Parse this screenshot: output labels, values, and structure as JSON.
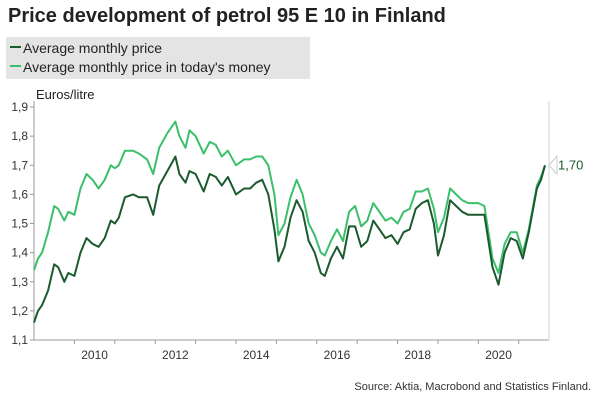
{
  "title": "Price development of petrol 95 E 10 in Finland",
  "source": "Source: Aktia, Macrobond and Statistics Finland.",
  "colors": {
    "series1": "#1a5a2e",
    "series2": "#3bbf6a",
    "axis": "#999999",
    "grid": "#e6e6e6"
  },
  "chart_data": {
    "type": "line",
    "title": "Price development of petrol 95 E 10 in Finland",
    "ylabel": "Euros/litre",
    "xlabel": "",
    "ylim": [
      1.1,
      1.9
    ],
    "xlim": [
      2009.0,
      2021.65
    ],
    "yticks": [
      "1,1",
      "1,2",
      "1,3",
      "1,4",
      "1,5",
      "1,6",
      "1,7",
      "1,8",
      "1,9"
    ],
    "xticks": [
      "2010",
      "2012",
      "2014",
      "2016",
      "2018",
      "2020"
    ],
    "legend_position": "top-left",
    "grid": false,
    "end_label": "1,70",
    "series": [
      {
        "name": "Average monthly price",
        "x": [
          2009.0,
          2009.1,
          2009.2,
          2009.35,
          2009.5,
          2009.6,
          2009.75,
          2009.85,
          2010.0,
          2010.15,
          2010.3,
          2010.45,
          2010.6,
          2010.75,
          2010.9,
          2011.0,
          2011.1,
          2011.25,
          2011.45,
          2011.6,
          2011.8,
          2011.95,
          2012.1,
          2012.3,
          2012.5,
          2012.6,
          2012.75,
          2012.85,
          2013.0,
          2013.2,
          2013.35,
          2013.5,
          2013.65,
          2013.8,
          2014.0,
          2014.2,
          2014.35,
          2014.5,
          2014.65,
          2014.8,
          2014.95,
          2015.05,
          2015.2,
          2015.35,
          2015.5,
          2015.65,
          2015.8,
          2015.95,
          2016.1,
          2016.2,
          2016.35,
          2016.5,
          2016.65,
          2016.8,
          2016.95,
          2017.1,
          2017.25,
          2017.4,
          2017.55,
          2017.7,
          2017.85,
          2018.0,
          2018.15,
          2018.3,
          2018.45,
          2018.6,
          2018.75,
          2018.9,
          2019.0,
          2019.15,
          2019.3,
          2019.45,
          2019.6,
          2019.75,
          2019.9,
          2020.0,
          2020.15,
          2020.35,
          2020.5,
          2020.65,
          2020.8,
          2020.95,
          2021.1,
          2021.25,
          2021.45,
          2021.55,
          2021.65
        ],
        "values": [
          1.16,
          1.2,
          1.22,
          1.27,
          1.36,
          1.35,
          1.3,
          1.33,
          1.32,
          1.4,
          1.45,
          1.43,
          1.42,
          1.45,
          1.51,
          1.5,
          1.52,
          1.59,
          1.6,
          1.59,
          1.59,
          1.53,
          1.63,
          1.68,
          1.73,
          1.67,
          1.64,
          1.68,
          1.67,
          1.61,
          1.67,
          1.66,
          1.63,
          1.66,
          1.6,
          1.62,
          1.62,
          1.64,
          1.65,
          1.6,
          1.48,
          1.37,
          1.42,
          1.52,
          1.58,
          1.54,
          1.44,
          1.4,
          1.33,
          1.32,
          1.38,
          1.42,
          1.38,
          1.49,
          1.49,
          1.42,
          1.44,
          1.51,
          1.48,
          1.45,
          1.46,
          1.43,
          1.47,
          1.48,
          1.55,
          1.57,
          1.58,
          1.5,
          1.39,
          1.46,
          1.58,
          1.56,
          1.54,
          1.53,
          1.53,
          1.53,
          1.53,
          1.35,
          1.29,
          1.4,
          1.45,
          1.44,
          1.38,
          1.47,
          1.62,
          1.65,
          1.7
        ]
      },
      {
        "name": "Average monthly price in today's money",
        "x": [
          2009.0,
          2009.1,
          2009.2,
          2009.35,
          2009.5,
          2009.6,
          2009.75,
          2009.85,
          2010.0,
          2010.15,
          2010.3,
          2010.45,
          2010.6,
          2010.75,
          2010.9,
          2011.0,
          2011.1,
          2011.25,
          2011.45,
          2011.6,
          2011.8,
          2011.95,
          2012.1,
          2012.3,
          2012.5,
          2012.6,
          2012.75,
          2012.85,
          2013.0,
          2013.2,
          2013.35,
          2013.5,
          2013.65,
          2013.8,
          2014.0,
          2014.2,
          2014.35,
          2014.5,
          2014.65,
          2014.8,
          2014.95,
          2015.05,
          2015.2,
          2015.35,
          2015.5,
          2015.65,
          2015.8,
          2015.95,
          2016.1,
          2016.2,
          2016.35,
          2016.5,
          2016.65,
          2016.8,
          2016.95,
          2017.1,
          2017.25,
          2017.4,
          2017.55,
          2017.7,
          2017.85,
          2018.0,
          2018.15,
          2018.3,
          2018.45,
          2018.6,
          2018.75,
          2018.9,
          2019.0,
          2019.15,
          2019.3,
          2019.45,
          2019.6,
          2019.75,
          2019.9,
          2020.0,
          2020.15,
          2020.35,
          2020.5,
          2020.65,
          2020.8,
          2020.95,
          2021.1,
          2021.25,
          2021.45,
          2021.55,
          2021.65
        ],
        "values": [
          1.34,
          1.38,
          1.4,
          1.47,
          1.56,
          1.55,
          1.51,
          1.54,
          1.53,
          1.62,
          1.67,
          1.65,
          1.62,
          1.65,
          1.7,
          1.69,
          1.7,
          1.75,
          1.75,
          1.74,
          1.72,
          1.67,
          1.76,
          1.81,
          1.85,
          1.8,
          1.76,
          1.82,
          1.8,
          1.74,
          1.78,
          1.77,
          1.73,
          1.75,
          1.7,
          1.72,
          1.72,
          1.73,
          1.73,
          1.7,
          1.6,
          1.46,
          1.5,
          1.59,
          1.65,
          1.6,
          1.5,
          1.46,
          1.4,
          1.39,
          1.44,
          1.48,
          1.44,
          1.54,
          1.56,
          1.49,
          1.51,
          1.57,
          1.54,
          1.51,
          1.52,
          1.5,
          1.54,
          1.55,
          1.61,
          1.61,
          1.62,
          1.55,
          1.47,
          1.52,
          1.62,
          1.6,
          1.58,
          1.57,
          1.57,
          1.57,
          1.56,
          1.38,
          1.33,
          1.43,
          1.47,
          1.47,
          1.4,
          1.48,
          1.63,
          1.66,
          1.7
        ]
      }
    ]
  }
}
